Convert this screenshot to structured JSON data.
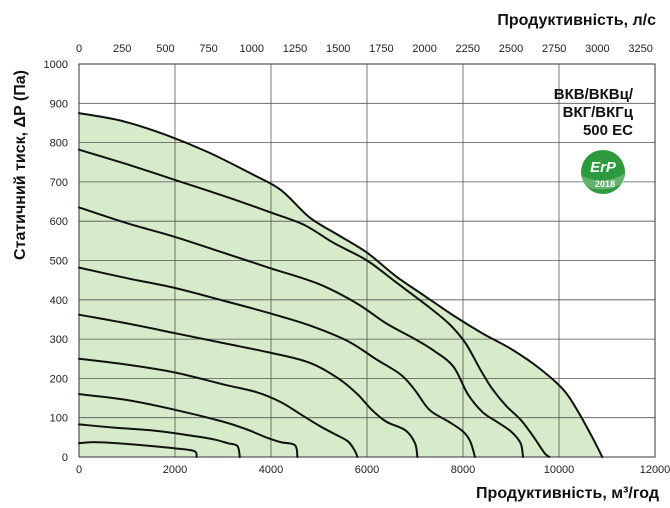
{
  "chart_data": {
    "type": "line",
    "x_axis_bottom": {
      "label": "Продуктивність, м³/год",
      "range": [
        0,
        12000
      ],
      "ticks": [
        0,
        2000,
        4000,
        6000,
        8000,
        10000,
        12000
      ]
    },
    "x_axis_top": {
      "label": "Продуктивність, л/с",
      "ticks": [
        0,
        250,
        500,
        750,
        1000,
        1250,
        1500,
        1750,
        2000,
        2250,
        2500,
        2750,
        3000,
        3250
      ]
    },
    "y_axis": {
      "label": "Статичний тиск, ΔP (Па)",
      "range": [
        0,
        1000
      ],
      "ticks": [
        0,
        100,
        200,
        300,
        400,
        500,
        600,
        700,
        800,
        900,
        1000
      ]
    },
    "grid": true,
    "model_label": [
      "ВКВ/ВКВц/",
      "ВКГ/ВКГц",
      "500 ЕС"
    ],
    "badge": {
      "text": "ErP",
      "year": "2018",
      "color": "#2e9a3e"
    },
    "colors": {
      "fill": "#d6ebc9",
      "curve": "#111111",
      "grid": "#555555"
    },
    "series": [
      {
        "values": [
          [
            0,
            875
          ],
          [
            900,
            855
          ],
          [
            1800,
            820
          ],
          [
            2700,
            775
          ],
          [
            3600,
            720
          ],
          [
            4200,
            680
          ],
          [
            4800,
            610
          ],
          [
            5400,
            565
          ],
          [
            6000,
            520
          ],
          [
            6600,
            460
          ],
          [
            7200,
            410
          ],
          [
            7800,
            360
          ],
          [
            8400,
            315
          ],
          [
            9000,
            275
          ],
          [
            9600,
            225
          ],
          [
            10100,
            170
          ],
          [
            10400,
            115
          ],
          [
            10650,
            60
          ],
          [
            10800,
            25
          ],
          [
            10900,
            0
          ]
        ]
      },
      {
        "values": [
          [
            0,
            782
          ],
          [
            1000,
            745
          ],
          [
            2000,
            705
          ],
          [
            3000,
            665
          ],
          [
            4000,
            622
          ],
          [
            4700,
            590
          ],
          [
            5300,
            545
          ],
          [
            6000,
            500
          ],
          [
            6600,
            445
          ],
          [
            7200,
            390
          ],
          [
            7700,
            340
          ],
          [
            8050,
            290
          ],
          [
            8350,
            225
          ],
          [
            8600,
            175
          ],
          [
            8900,
            130
          ],
          [
            9200,
            95
          ],
          [
            9450,
            55
          ],
          [
            9700,
            10
          ],
          [
            9800,
            0
          ]
        ]
      },
      {
        "values": [
          [
            0,
            635
          ],
          [
            1000,
            595
          ],
          [
            2000,
            560
          ],
          [
            3000,
            520
          ],
          [
            4000,
            480
          ],
          [
            5000,
            440
          ],
          [
            5800,
            390
          ],
          [
            6400,
            340
          ],
          [
            7000,
            300
          ],
          [
            7400,
            270
          ],
          [
            7800,
            230
          ],
          [
            8100,
            160
          ],
          [
            8400,
            115
          ],
          [
            8700,
            90
          ],
          [
            9000,
            65
          ],
          [
            9200,
            35
          ],
          [
            9250,
            0
          ]
        ]
      },
      {
        "values": [
          [
            0,
            482
          ],
          [
            1000,
            455
          ],
          [
            2000,
            430
          ],
          [
            3000,
            398
          ],
          [
            4000,
            365
          ],
          [
            4800,
            335
          ],
          [
            5600,
            295
          ],
          [
            6200,
            248
          ],
          [
            6700,
            210
          ],
          [
            7000,
            170
          ],
          [
            7300,
            120
          ],
          [
            7700,
            90
          ],
          [
            8000,
            65
          ],
          [
            8150,
            40
          ],
          [
            8250,
            0
          ]
        ]
      },
      {
        "values": [
          [
            0,
            362
          ],
          [
            1000,
            340
          ],
          [
            2000,
            315
          ],
          [
            3000,
            290
          ],
          [
            4000,
            265
          ],
          [
            4800,
            240
          ],
          [
            5400,
            200
          ],
          [
            5800,
            160
          ],
          [
            6100,
            120
          ],
          [
            6400,
            90
          ],
          [
            6800,
            68
          ],
          [
            7000,
            35
          ],
          [
            7050,
            0
          ]
        ]
      },
      {
        "values": [
          [
            0,
            250
          ],
          [
            1000,
            235
          ],
          [
            2000,
            215
          ],
          [
            3000,
            185
          ],
          [
            3700,
            165
          ],
          [
            4200,
            140
          ],
          [
            4600,
            110
          ],
          [
            5000,
            80
          ],
          [
            5300,
            60
          ],
          [
            5600,
            40
          ],
          [
            5750,
            15
          ],
          [
            5800,
            0
          ]
        ]
      },
      {
        "values": [
          [
            0,
            160
          ],
          [
            1000,
            145
          ],
          [
            2000,
            120
          ],
          [
            3000,
            90
          ],
          [
            3500,
            70
          ],
          [
            3900,
            50
          ],
          [
            4200,
            38
          ],
          [
            4500,
            30
          ],
          [
            4550,
            0
          ]
        ]
      },
      {
        "values": [
          [
            0,
            83
          ],
          [
            700,
            75
          ],
          [
            1500,
            68
          ],
          [
            2300,
            55
          ],
          [
            2800,
            45
          ],
          [
            3100,
            35
          ],
          [
            3300,
            28
          ],
          [
            3350,
            0
          ]
        ]
      },
      {
        "values": [
          [
            0,
            35
          ],
          [
            300,
            38
          ],
          [
            800,
            35
          ],
          [
            1500,
            28
          ],
          [
            2000,
            22
          ],
          [
            2400,
            15
          ],
          [
            2450,
            0
          ]
        ]
      }
    ]
  }
}
